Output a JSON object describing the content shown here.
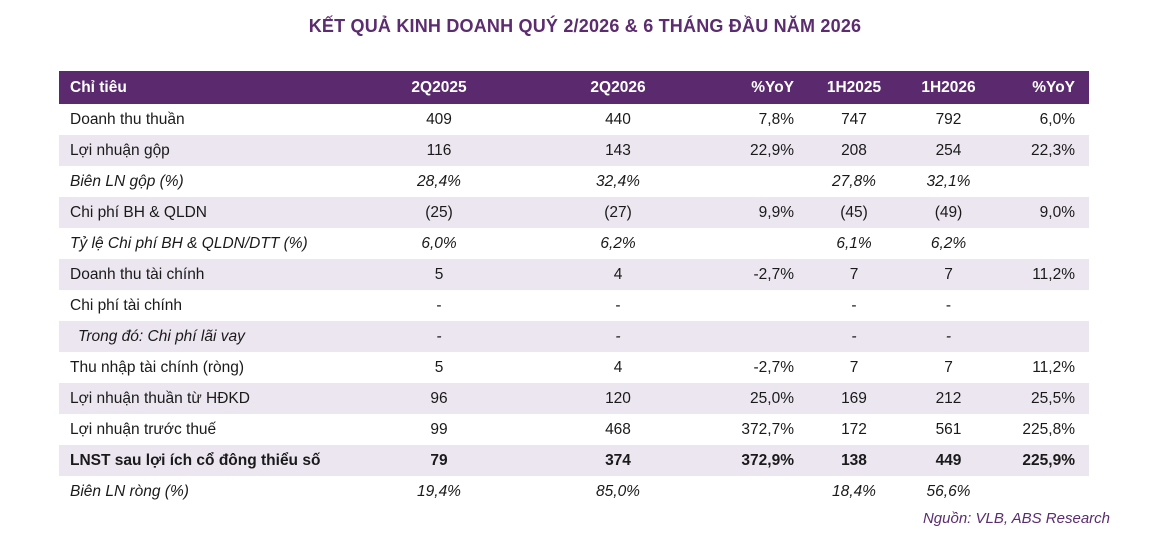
{
  "title": "KẾT QUẢ KINH DOANH QUÝ 2/2026 & 6 THÁNG ĐẦU NĂM 2026",
  "header": {
    "label": "Chỉ tiêu",
    "c1": "2Q2025",
    "c2": "2Q2026",
    "c3": "%YoY",
    "c4": "1H2025",
    "c5": "1H2026",
    "c6": "%YoY"
  },
  "rows": [
    {
      "label": "Doanh thu thuần",
      "c1": "409",
      "c2": "440",
      "c3": "7,8%",
      "c4": "747",
      "c5": "792",
      "c6": "6,0%"
    },
    {
      "label": "Lợi nhuận gộp",
      "c1": "116",
      "c2": "143",
      "c3": "22,9%",
      "c4": "208",
      "c5": "254",
      "c6": "22,3%"
    },
    {
      "label": "Biên LN gộp (%)",
      "c1": "28,4%",
      "c2": "32,4%",
      "c3": "",
      "c4": "27,8%",
      "c5": "32,1%",
      "c6": ""
    },
    {
      "label": "Chi phí BH & QLDN",
      "c1": "(25)",
      "c2": "(27)",
      "c3": "9,9%",
      "c4": "(45)",
      "c5": "(49)",
      "c6": "9,0%"
    },
    {
      "label": "Tỷ lệ Chi phí BH & QLDN/DTT (%)",
      "c1": "6,0%",
      "c2": "6,2%",
      "c3": "",
      "c4": "6,1%",
      "c5": "6,2%",
      "c6": ""
    },
    {
      "label": "Doanh thu tài chính",
      "c1": "5",
      "c2": "4",
      "c3": "-2,7%",
      "c4": "7",
      "c5": "7",
      "c6": "11,2%"
    },
    {
      "label": "Chi phí tài chính",
      "c1": "-",
      "c2": "-",
      "c3": "",
      "c4": "-",
      "c5": "-",
      "c6": ""
    },
    {
      "label": "Trong đó: Chi phí lãi vay",
      "c1": "-",
      "c2": "-",
      "c3": "",
      "c4": "-",
      "c5": "-",
      "c6": ""
    },
    {
      "label": "Thu nhập tài chính (ròng)",
      "c1": "5",
      "c2": "4",
      "c3": "-2,7%",
      "c4": "7",
      "c5": "7",
      "c6": "11,2%"
    },
    {
      "label": "Lợi nhuận thuần từ HĐKD",
      "c1": "96",
      "c2": "120",
      "c3": "25,0%",
      "c4": "169",
      "c5": "212",
      "c6": "25,5%"
    },
    {
      "label": "Lợi nhuận trước thuế",
      "c1": "99",
      "c2": "468",
      "c3": "372,7%",
      "c4": "172",
      "c5": "561",
      "c6": "225,8%"
    },
    {
      "label": "LNST sau lợi ích cổ đông thiểu số",
      "c1": "79",
      "c2": "374",
      "c3": "372,9%",
      "c4": "138",
      "c5": "449",
      "c6": "225,9%"
    },
    {
      "label": "Biên LN ròng (%)",
      "c1": "19,4%",
      "c2": "85,0%",
      "c3": "",
      "c4": "18,4%",
      "c5": "56,6%",
      "c6": ""
    }
  ],
  "source": "Nguồn: VLB, ABS Research",
  "colors": {
    "header_bg": "#5b2a6e",
    "title": "#5b2c6f",
    "row_shade": "#ece6f0"
  }
}
